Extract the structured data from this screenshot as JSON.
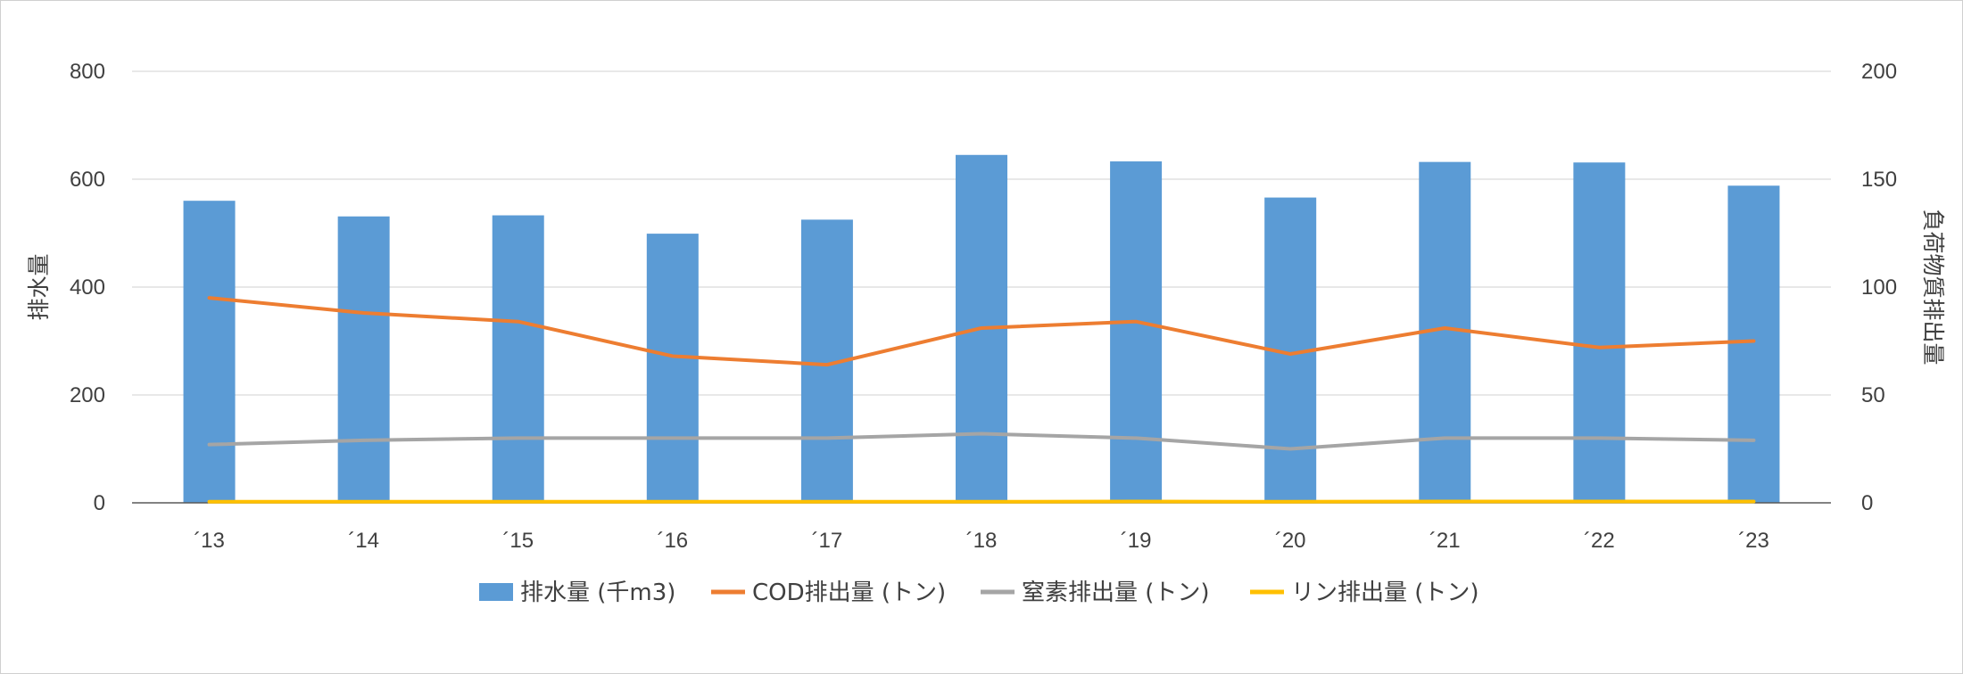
{
  "chart_data": {
    "type": "bar",
    "categories": [
      "´13",
      "´14",
      "´15",
      "´16",
      "´17",
      "´18",
      "´19",
      "´20",
      "´21",
      "´22",
      "´23"
    ],
    "series": [
      {
        "name": "排水量 (千m3)",
        "type": "bar",
        "axis": "left",
        "color": "#5B9BD5",
        "values": [
          560,
          531,
          533,
          499,
          525,
          645,
          633,
          566,
          632,
          631,
          588
        ]
      },
      {
        "name": "COD排出量 (トン)",
        "type": "line",
        "axis": "right",
        "color": "#ED7D31",
        "values": [
          95,
          88,
          84,
          68,
          64,
          81,
          84,
          69,
          81,
          72,
          75
        ]
      },
      {
        "name": "窒素排出量 (トン)",
        "type": "line",
        "axis": "right",
        "color": "#A5A5A5",
        "values": [
          27,
          29,
          30,
          30,
          30,
          32,
          30,
          25,
          30,
          30,
          29
        ]
      },
      {
        "name": "リン排出量 (トン)",
        "type": "line",
        "axis": "right",
        "color": "#FFC000",
        "values": [
          0.5,
          0.5,
          0.5,
          0.5,
          0.5,
          0.5,
          0.6,
          0.5,
          0.6,
          0.6,
          0.6
        ]
      }
    ],
    "ylabel": "排水量",
    "y2label": "負荷物質排出量",
    "ylim": [
      0,
      800
    ],
    "y2lim": [
      0,
      200
    ],
    "yticks": [
      "0",
      "200",
      "400",
      "600",
      "800"
    ],
    "y2ticks": [
      "0",
      "50",
      "100",
      "150",
      "200"
    ],
    "grid": true,
    "legend_position": "bottom"
  }
}
